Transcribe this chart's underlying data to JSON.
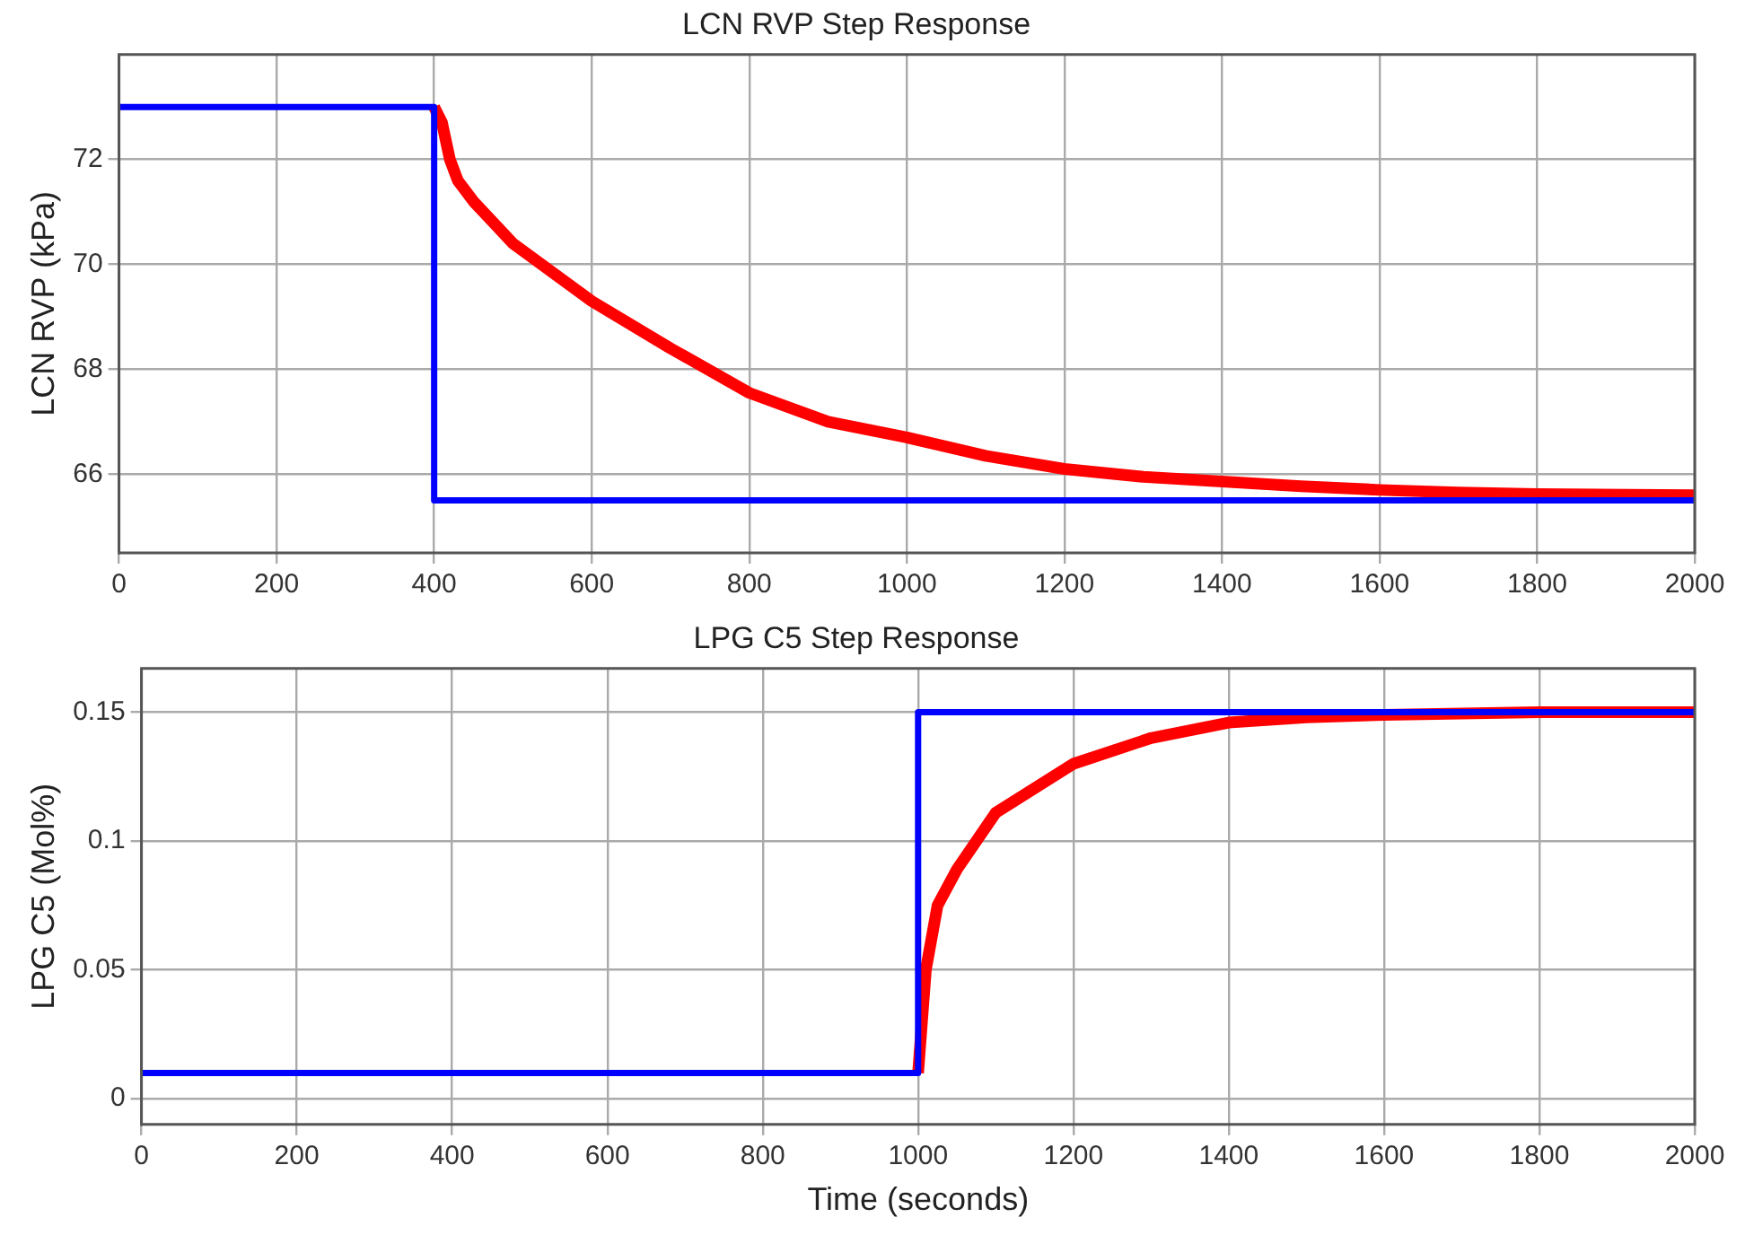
{
  "chart_data": [
    {
      "type": "line",
      "title": "LCN RVP Step Response",
      "ylabel": "LCN RVP (kPa)",
      "xlim": [
        0,
        2000
      ],
      "xticks": [
        0,
        200,
        400,
        600,
        800,
        1000,
        1200,
        1400,
        1600,
        1800,
        2000
      ],
      "ylim": [
        64.5,
        74
      ],
      "yticks": [
        66,
        68,
        70,
        72
      ],
      "grid": true,
      "legend": false,
      "marker": "none",
      "line_style": "solid",
      "series": [
        {
          "color": "#ff0000",
          "x": [
            400,
            410,
            420,
            430,
            450,
            500,
            600,
            700,
            800,
            900,
            1000,
            1100,
            1200,
            1300,
            1400,
            1500,
            1600,
            1700,
            1800,
            2000
          ],
          "values": [
            73,
            72.7,
            72.0,
            71.6,
            71.2,
            70.4,
            69.3,
            68.4,
            67.55,
            67.0,
            66.7,
            66.35,
            66.1,
            65.95,
            65.86,
            65.77,
            65.7,
            65.65,
            65.62,
            65.6
          ]
        },
        {
          "color": "#0000ff",
          "x": [
            0,
            400,
            400,
            2000
          ],
          "values": [
            73,
            73,
            65.5,
            65.5
          ]
        }
      ]
    },
    {
      "type": "line",
      "title": "LPG C5 Step Response",
      "xlabel": "Time (seconds)",
      "ylabel": "LPG C5 (Mol%)",
      "xlim": [
        0,
        2000
      ],
      "xticks": [
        0,
        200,
        400,
        600,
        800,
        1000,
        1200,
        1400,
        1600,
        1800,
        2000
      ],
      "ylim": [
        -0.01,
        0.167
      ],
      "yticks": [
        0,
        0.05,
        0.1,
        0.15
      ],
      "grid": true,
      "legend": false,
      "marker": "none",
      "line_style": "solid",
      "series": [
        {
          "color": "#ff0000",
          "x": [
            1000,
            1010,
            1025,
            1050,
            1100,
            1200,
            1300,
            1400,
            1500,
            1600,
            1800,
            2000
          ],
          "values": [
            0.01,
            0.05,
            0.075,
            0.089,
            0.111,
            0.13,
            0.14,
            0.146,
            0.148,
            0.149,
            0.15,
            0.15
          ]
        },
        {
          "color": "#0000ff",
          "x": [
            0,
            1000,
            1000,
            2000
          ],
          "values": [
            0.01,
            0.01,
            0.15,
            0.15
          ]
        }
      ]
    }
  ]
}
